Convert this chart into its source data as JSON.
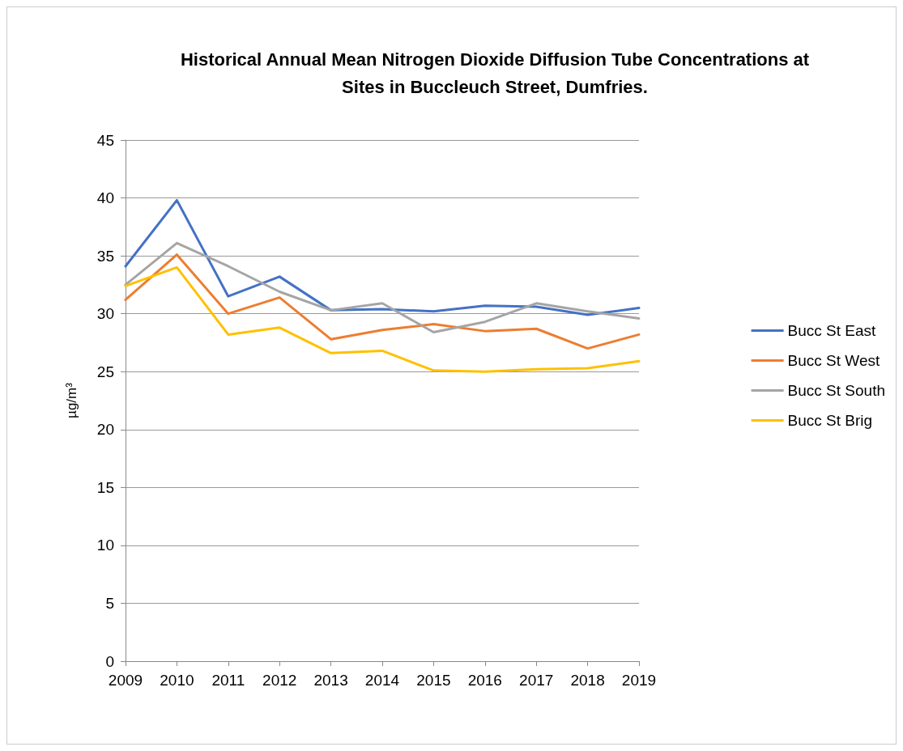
{
  "chart_data": {
    "type": "line",
    "title": "Historical Annual Mean Nitrogen Dioxide Diffusion Tube Concentrations at\nSites in Buccleuch Street, Dumfries.",
    "ylabel": "µg/m³",
    "categories": [
      "2009",
      "2010",
      "2011",
      "2012",
      "2013",
      "2014",
      "2015",
      "2016",
      "2017",
      "2018",
      "2019"
    ],
    "series": [
      {
        "name": "Bucc St East",
        "color": "#4472c4",
        "values": [
          34.1,
          39.8,
          31.5,
          33.2,
          30.3,
          30.4,
          30.2,
          30.7,
          30.6,
          29.9,
          30.5
        ]
      },
      {
        "name": "Bucc St West",
        "color": "#ed7d31",
        "values": [
          31.2,
          35.1,
          30.0,
          31.4,
          27.8,
          28.6,
          29.1,
          28.5,
          28.7,
          27.0,
          28.2
        ]
      },
      {
        "name": "Bucc St South",
        "color": "#a5a5a5",
        "values": [
          32.5,
          36.1,
          34.1,
          31.9,
          30.3,
          30.9,
          28.4,
          29.3,
          30.9,
          30.2,
          29.6
        ]
      },
      {
        "name": "Bucc St Brig",
        "color": "#ffc000",
        "values": [
          32.4,
          34.0,
          28.2,
          28.8,
          26.6,
          26.8,
          25.1,
          25.0,
          25.2,
          25.3,
          25.9
        ]
      }
    ],
    "ylim": [
      0,
      45
    ],
    "yticks": [
      0,
      5,
      10,
      15,
      20,
      25,
      30,
      35,
      40,
      45
    ],
    "grid": "y",
    "legend": "right",
    "marker": "none",
    "line_style": "solid"
  }
}
